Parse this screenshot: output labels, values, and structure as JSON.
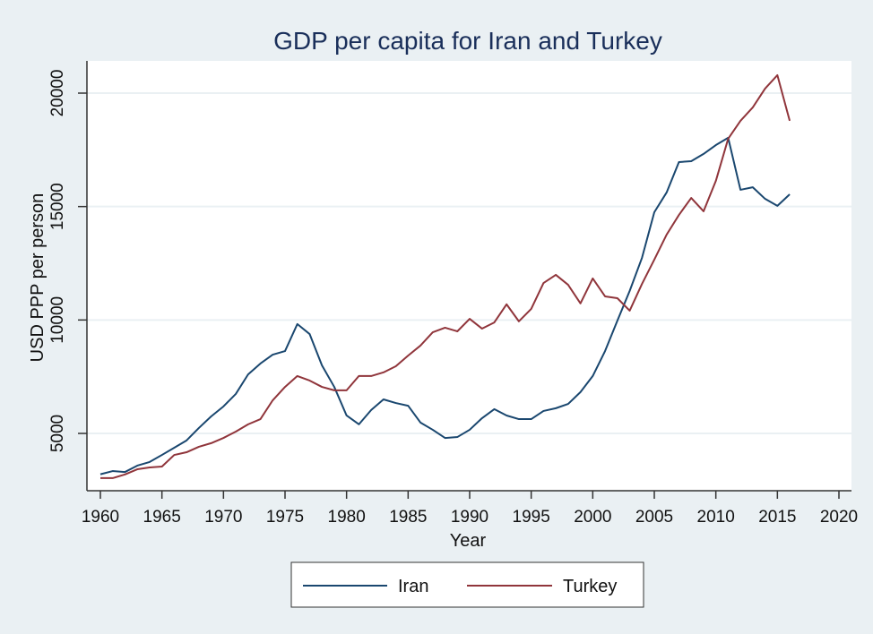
{
  "chart_data": {
    "type": "line",
    "title": "GDP per capita for Iran and Turkey",
    "xlabel": "Year",
    "ylabel": "USD PPP per person",
    "xlim": [
      1960,
      2020
    ],
    "ylim": [
      2500,
      21500
    ],
    "xticks": [
      1960,
      1965,
      1970,
      1975,
      1980,
      1985,
      1990,
      1995,
      2000,
      2005,
      2010,
      2015,
      2020
    ],
    "yticks": [
      5000,
      10000,
      15000,
      20000
    ],
    "grid": "horizontal",
    "legend": "bottom",
    "x": [
      1960,
      1961,
      1962,
      1963,
      1964,
      1965,
      1966,
      1967,
      1968,
      1969,
      1970,
      1971,
      1972,
      1973,
      1974,
      1975,
      1976,
      1977,
      1978,
      1979,
      1980,
      1981,
      1982,
      1983,
      1984,
      1985,
      1986,
      1987,
      1988,
      1989,
      1990,
      1991,
      1992,
      1993,
      1994,
      1995,
      1996,
      1997,
      1998,
      1999,
      2000,
      2001,
      2002,
      2003,
      2004,
      2005,
      2006,
      2007,
      2008,
      2009,
      2010,
      2011,
      2012,
      2013,
      2014,
      2015,
      2016
    ],
    "series": [
      {
        "name": "Iran",
        "color": "#1a476f",
        "values": [
          3200,
          3340,
          3300,
          3580,
          3740,
          4050,
          4370,
          4690,
          5240,
          5750,
          6190,
          6740,
          7600,
          8080,
          8470,
          8630,
          9820,
          9380,
          8000,
          7050,
          5790,
          5400,
          6030,
          6500,
          6340,
          6220,
          5480,
          5160,
          4800,
          4840,
          5160,
          5670,
          6070,
          5790,
          5630,
          5630,
          5990,
          6110,
          6300,
          6820,
          7530,
          8630,
          9970,
          11280,
          12740,
          14750,
          15620,
          16960,
          17000,
          17320,
          17710,
          18030,
          15740,
          15850,
          15340,
          15030,
          15540
        ]
      },
      {
        "name": "Turkey",
        "color": "#90353b",
        "values": [
          3030,
          3030,
          3190,
          3420,
          3500,
          3540,
          4050,
          4170,
          4410,
          4570,
          4800,
          5080,
          5400,
          5630,
          6460,
          7050,
          7530,
          7330,
          7050,
          6900,
          6900,
          7530,
          7530,
          7690,
          7960,
          8430,
          8870,
          9460,
          9660,
          9500,
          10050,
          9620,
          9890,
          10690,
          9940,
          10490,
          11630,
          11990,
          11550,
          10730,
          11830,
          11040,
          10960,
          10410,
          11590,
          12660,
          13760,
          14630,
          15380,
          14790,
          16130,
          17990,
          18780,
          19370,
          20200,
          20790,
          18780
        ]
      }
    ]
  }
}
